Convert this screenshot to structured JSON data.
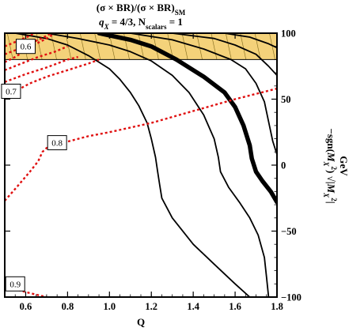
{
  "chart_data": {
    "type": "contour",
    "title_lines": [
      {
        "pre": "(σ × BR)/(σ × BR)",
        "sub": "SM",
        "post": ""
      },
      {
        "pre": "q",
        "sub": "X",
        "post": " = 4/3, N",
        "sub2": "scalars",
        "post2": " = 1"
      }
    ],
    "xlabel": "Q",
    "ylabel_right": "−sgn(M_X²) √|M_X²|",
    "ylabel_right_parts": {
      "sign": "−sgn",
      "M": "M",
      "sub": "X",
      "sup": "2"
    },
    "ylabel_unit": "GeV",
    "xlim": [
      0.5,
      1.8
    ],
    "ylim": [
      -100,
      100
    ],
    "x_ticks": [
      "0.6",
      "0.8",
      "1.0",
      "1.2",
      "1.4",
      "1.6",
      "1.8"
    ],
    "y_ticks": [
      "100",
      "50",
      "0",
      "-50",
      "-100"
    ],
    "excluded_band": {
      "color": "#f4d27a",
      "y_from": 80,
      "y_to": 100
    },
    "red_contours": [
      {
        "label": "0.6",
        "points": [
          [
            0.5,
            78
          ],
          [
            0.55,
            82
          ],
          [
            0.6,
            87
          ],
          [
            0.65,
            92
          ],
          [
            0.7,
            96
          ],
          [
            0.73,
            99
          ]
        ]
      },
      {
        "label": "0.7",
        "points": [
          [
            0.5,
            52
          ],
          [
            0.55,
            56
          ],
          [
            0.62,
            62
          ],
          [
            0.7,
            67
          ],
          [
            0.8,
            72
          ],
          [
            0.9,
            77
          ],
          [
            0.95,
            80
          ]
        ]
      },
      {
        "label": "0.8",
        "points": [
          [
            0.5,
            -27
          ],
          [
            0.55,
            -18
          ],
          [
            0.62,
            -5
          ],
          [
            0.66,
            3
          ],
          [
            0.68,
            10
          ],
          [
            0.7,
            13
          ],
          [
            0.78,
            17
          ],
          [
            0.9,
            22
          ],
          [
            1.0,
            25
          ],
          [
            1.2,
            32
          ],
          [
            1.4,
            41
          ],
          [
            1.6,
            50
          ],
          [
            1.8,
            58
          ]
        ]
      },
      {
        "label": "0.9",
        "points": [
          [
            0.5,
            -91
          ],
          [
            0.55,
            -94
          ],
          [
            0.62,
            -97
          ],
          [
            0.7,
            -100
          ]
        ]
      }
    ],
    "extra_red_dotted": [
      {
        "points": [
          [
            0.5,
            90
          ],
          [
            0.56,
            94
          ],
          [
            0.62,
            98
          ],
          [
            0.64,
            100
          ]
        ]
      },
      {
        "points": [
          [
            0.5,
            84
          ],
          [
            0.58,
            89
          ],
          [
            0.66,
            95
          ],
          [
            0.7,
            98
          ],
          [
            0.72,
            100
          ]
        ]
      },
      {
        "points": [
          [
            0.5,
            72
          ],
          [
            0.58,
            77
          ],
          [
            0.66,
            82
          ],
          [
            0.74,
            86
          ],
          [
            0.8,
            90
          ]
        ]
      },
      {
        "points": [
          [
            0.5,
            63
          ],
          [
            0.6,
            69
          ],
          [
            0.7,
            74
          ],
          [
            0.8,
            80
          ],
          [
            0.85,
            82
          ]
        ]
      }
    ],
    "black_contours": [
      {
        "bold": false,
        "points": [
          [
            0.55,
            100
          ],
          [
            0.7,
            96
          ],
          [
            0.8,
            91
          ],
          [
            0.9,
            83
          ],
          [
            1.0,
            73
          ],
          [
            1.05,
            65
          ],
          [
            1.1,
            55
          ],
          [
            1.14,
            45
          ],
          [
            1.18,
            32
          ],
          [
            1.2,
            20
          ],
          [
            1.22,
            6
          ],
          [
            1.23,
            -5
          ],
          [
            1.24,
            -15
          ],
          [
            1.25,
            -25
          ],
          [
            1.3,
            -40
          ],
          [
            1.4,
            -60
          ],
          [
            1.5,
            -75
          ],
          [
            1.6,
            -90
          ],
          [
            1.67,
            -100
          ]
        ]
      },
      {
        "bold": false,
        "points": [
          [
            0.7,
            100
          ],
          [
            0.85,
            96
          ],
          [
            1.0,
            91
          ],
          [
            1.1,
            86
          ],
          [
            1.2,
            79
          ],
          [
            1.3,
            68
          ],
          [
            1.38,
            55
          ],
          [
            1.45,
            38
          ],
          [
            1.5,
            20
          ],
          [
            1.52,
            6
          ],
          [
            1.53,
            -5
          ],
          [
            1.57,
            -17
          ],
          [
            1.62,
            -28
          ],
          [
            1.67,
            -40
          ],
          [
            1.71,
            -53
          ],
          [
            1.74,
            -70
          ],
          [
            1.75,
            -85
          ],
          [
            1.76,
            -100
          ]
        ]
      },
      {
        "bold": true,
        "points": [
          [
            0.95,
            100
          ],
          [
            1.1,
            95
          ],
          [
            1.2,
            90
          ],
          [
            1.32,
            80
          ],
          [
            1.45,
            67
          ],
          [
            1.55,
            55
          ],
          [
            1.6,
            44
          ],
          [
            1.64,
            30
          ],
          [
            1.67,
            15
          ],
          [
            1.68,
            5
          ],
          [
            1.7,
            -5
          ],
          [
            1.73,
            -12
          ],
          [
            1.77,
            -20
          ],
          [
            1.8,
            -28
          ]
        ]
      },
      {
        "bold": false,
        "points": [
          [
            1.1,
            100
          ],
          [
            1.3,
            95
          ],
          [
            1.45,
            88
          ],
          [
            1.58,
            80
          ],
          [
            1.65,
            73
          ],
          [
            1.7,
            62
          ],
          [
            1.74,
            48
          ],
          [
            1.76,
            33
          ],
          [
            1.78,
            18
          ],
          [
            1.8,
            8
          ]
        ]
      },
      {
        "bold": false,
        "points": [
          [
            1.3,
            100
          ],
          [
            1.5,
            96
          ],
          [
            1.6,
            91
          ],
          [
            1.7,
            84
          ],
          [
            1.76,
            75
          ],
          [
            1.8,
            68
          ]
        ]
      },
      {
        "bold": false,
        "points": [
          [
            1.55,
            100
          ],
          [
            1.67,
            97
          ],
          [
            1.76,
            92
          ],
          [
            1.8,
            89
          ]
        ]
      }
    ]
  }
}
